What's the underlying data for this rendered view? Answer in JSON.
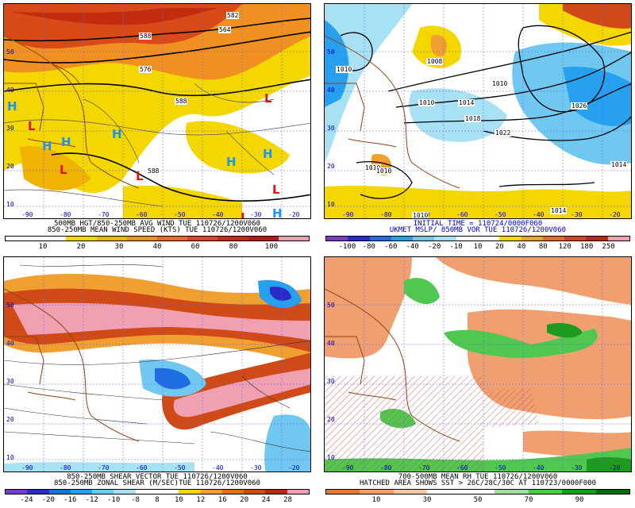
{
  "panels": [
    {
      "id": "p1",
      "caption_line1": "500MB HGT/850-250MB AVG WIND TUE 110726/1200V060",
      "caption_line2": "850-250MB MEAN WIND SPEED (KTS) TUE 110726/1200V060",
      "colorbar": [
        "#ffffff",
        "#ffffff",
        "#f5d700",
        "#f0b400",
        "#f09020",
        "#e86a1c",
        "#d84a18",
        "#c42c10",
        "#b01a18",
        "#f0a0b0"
      ],
      "ticks": [
        "10",
        "20",
        "30",
        "40",
        "60",
        "80",
        "100"
      ],
      "lon_labels": [
        "-90",
        "-80",
        "-70",
        "-60",
        "-50",
        "-40",
        "-30",
        "-20"
      ],
      "lat_labels": [
        "10",
        "20",
        "30",
        "40",
        "50"
      ],
      "contour_labels": [
        "582",
        "588",
        "576",
        "564",
        "588",
        "588"
      ],
      "highs": [
        "H",
        "H",
        "H",
        "H",
        "H",
        "H",
        "H"
      ],
      "lows": [
        "L",
        "L",
        "L",
        "L",
        "L",
        "L"
      ]
    },
    {
      "id": "p2",
      "caption_line1": "INITIAL TIME = 110724/0000F060",
      "caption_line2": "UKMET MSLP/ 850MB VOR TUE 110726/1200V060",
      "colorbar": [
        "#7a3cc8",
        "#2a2ac8",
        "#1e6ee0",
        "#28a0f0",
        "#70c8f0",
        "#a8e0f4",
        "#ffffff",
        "#ffffff",
        "#f5d700",
        "#f0a030",
        "#e07020",
        "#d04a18",
        "#b82a10",
        "#f0a0b0"
      ],
      "ticks": [
        "-100",
        "-80",
        "-60",
        "-40",
        "-20",
        "-10",
        "10",
        "20",
        "40",
        "80",
        "120",
        "180",
        "250"
      ],
      "lon_labels": [
        "-90",
        "-80",
        "-70",
        "-60",
        "-50",
        "-40",
        "-30",
        "-20"
      ],
      "lat_labels": [
        "10",
        "20",
        "30",
        "40",
        "50"
      ],
      "contour_labels": [
        "1010",
        "1008",
        "1014",
        "1010",
        "1018",
        "1022",
        "1026",
        "1014",
        "1010",
        "1010",
        "1010",
        "1014",
        "1010"
      ]
    },
    {
      "id": "p3",
      "caption_line1": "850-250MB SHEAR VECTOR TUE 110726/1200V060",
      "caption_line2": "850-250MB ZONAL SHEAR (M/SEC)TUE 110726/1200V060",
      "colorbar": [
        "#7a3cc8",
        "#2a2ac8",
        "#1e6ee0",
        "#28a0f0",
        "#70c8f0",
        "#a8e0f4",
        "#ffffff",
        "#ffffff",
        "#f5d700",
        "#f0a030",
        "#e07020",
        "#d04a18",
        "#b82a10",
        "#f0a0b0"
      ],
      "ticks": [
        "-24",
        "-20",
        "-16",
        "-12",
        "-10",
        "-8",
        "8",
        "10",
        "12",
        "16",
        "20",
        "24",
        "28"
      ],
      "lon_labels": [
        "-90",
        "-80",
        "-70",
        "-60",
        "-50",
        "-40",
        "-30",
        "-20"
      ],
      "lat_labels": [
        "10",
        "20",
        "30",
        "40",
        "50"
      ]
    },
    {
      "id": "p4",
      "caption_line1": "700-500MB MEAN RH TUE 110726/1200V060",
      "caption_line2": "HATCHED AREA SHOWS SST > 26C/28C/30C AT 110723/0000F000",
      "colorbar": [
        "#e07a3c",
        "#f0a070",
        "#f8c8a0",
        "#ffffff",
        "#ffffff",
        "#a0e0a0",
        "#50c850",
        "#1e9a1e",
        "#0a6a0a"
      ],
      "ticks": [
        "10",
        "30",
        "50",
        "70",
        "90"
      ],
      "lon_labels": [
        "-90",
        "-80",
        "-70",
        "-60",
        "-50",
        "-40",
        "-30",
        "-20"
      ],
      "lat_labels": [
        "10",
        "20",
        "30",
        "40",
        "50"
      ]
    }
  ]
}
